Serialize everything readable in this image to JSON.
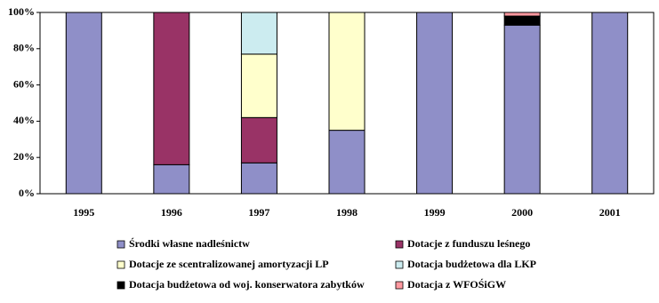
{
  "chart_data": {
    "type": "stacked-bar",
    "categories": [
      "1995",
      "1996",
      "1997",
      "1998",
      "1999",
      "2000",
      "2001"
    ],
    "series": [
      {
        "name": "Środki własne nadleśnictw",
        "color": "#8f8fc8",
        "values": [
          100,
          16,
          17,
          35,
          100,
          93,
          100
        ]
      },
      {
        "name": "Dotacje z funduszu leśnego",
        "color": "#993366",
        "values": [
          null,
          84,
          25,
          null,
          null,
          null,
          null
        ]
      },
      {
        "name": "Dotacje ze scentralizowanej amortyzacji LP",
        "color": "#ffffcc",
        "values": [
          null,
          null,
          35,
          65,
          null,
          null,
          null
        ]
      },
      {
        "name": "Dotacja budżetowa dla LKP",
        "color": "#ccecf0",
        "values": [
          null,
          null,
          23,
          null,
          null,
          null,
          null
        ]
      },
      {
        "name": "Dotacja budżetowa od woj. konserwatora zabytków",
        "color": "#000000",
        "values": [
          null,
          null,
          null,
          null,
          null,
          5,
          null
        ]
      },
      {
        "name": "Dotacja z WFOŚiGW",
        "color": "#ff99a0",
        "values": [
          null,
          null,
          null,
          null,
          null,
          2,
          null
        ]
      }
    ],
    "ylim": [
      0,
      100
    ],
    "yticks": [
      {
        "value": 0,
        "label": "0%"
      },
      {
        "value": 20,
        "label": "20%"
      },
      {
        "value": 40,
        "label": "40%"
      },
      {
        "value": 60,
        "label": "60%"
      },
      {
        "value": 80,
        "label": "80%"
      },
      {
        "value": 100,
        "label": "100%"
      }
    ],
    "grid": false
  }
}
